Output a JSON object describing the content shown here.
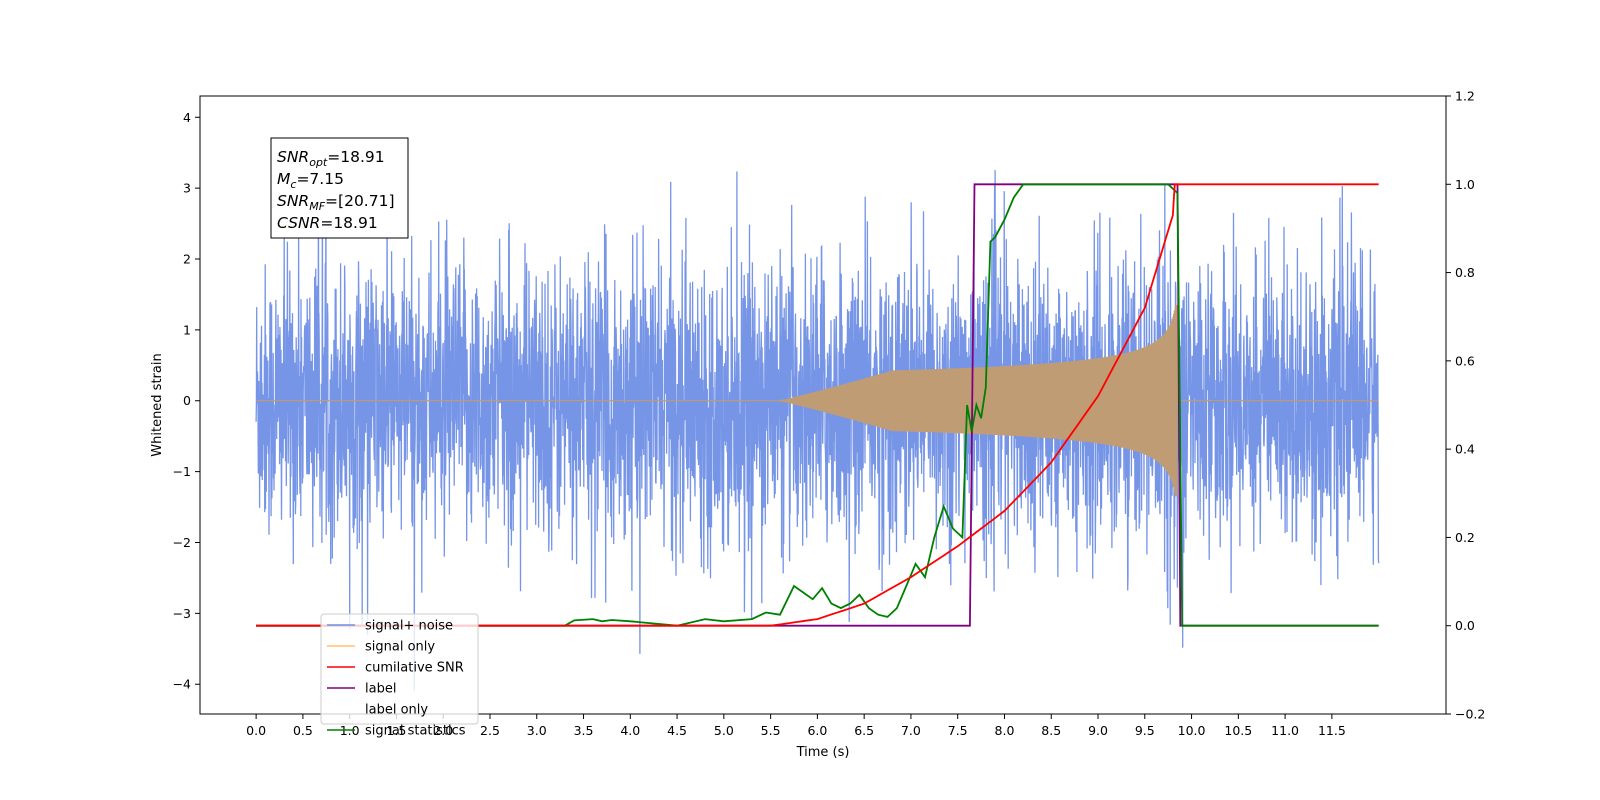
{
  "chart_data": {
    "type": "line",
    "title": "",
    "xlabel": "Time (s)",
    "ylabel": "Whitened strain",
    "xlim": [
      -0.6,
      12.72
    ],
    "ylim": [
      -4.42,
      4.3
    ],
    "y2lim": [
      -0.2,
      1.2
    ],
    "x_ticks": [
      "0.0",
      "0.5",
      "1.0",
      "1.5",
      "2.0",
      "2.5",
      "3.0",
      "3.5",
      "4.0",
      "4.5",
      "5.0",
      "5.5",
      "6.0",
      "6.5",
      "7.0",
      "7.5",
      "8.0",
      "8.5",
      "9.0",
      "9.5",
      "10.0",
      "10.5",
      "11.0",
      "11.5"
    ],
    "y_ticks": [
      "−4",
      "−3",
      "−2",
      "−1",
      "0",
      "1",
      "2",
      "3",
      "4"
    ],
    "y2_ticks": [
      "−0.2",
      "0.0",
      "0.2",
      "0.4",
      "0.6",
      "0.8",
      "1.0",
      "1.2"
    ],
    "grid": false,
    "legend_position": "lower-left",
    "annotation": {
      "lines": [
        {
          "main": "SNR",
          "sub": "opt",
          "rest": "=18.91"
        },
        {
          "main": "M",
          "sub": "c",
          "rest": "=7.15"
        },
        {
          "main": "SNR",
          "sub": "MF",
          "rest": "=[20.71]"
        },
        {
          "main": "CSNR",
          "sub": "",
          "rest": "=18.91"
        }
      ]
    },
    "series": [
      {
        "name": "signal+ noise",
        "color": "#6f8fe6",
        "axis": "left",
        "kind": "noise",
        "x_range": [
          0.0,
          12.0
        ],
        "noise_std": 1.0,
        "signal_range": [
          5.5,
          9.85
        ]
      },
      {
        "name": "signal only",
        "color": "#ffc46b",
        "axis": "left",
        "kind": "chirp",
        "x_range": [
          0.0,
          12.0
        ],
        "start": 5.6,
        "end": 9.85,
        "peak_amplitude": 1.3
      },
      {
        "name": "cumilative SNR",
        "color": "#ff0000",
        "axis": "right",
        "x": [
          0.0,
          5.5,
          6.0,
          6.5,
          7.0,
          7.5,
          8.0,
          8.5,
          9.0,
          9.5,
          9.8,
          9.82,
          12.0
        ],
        "values": [
          0.0,
          0.0,
          0.015,
          0.05,
          0.11,
          0.18,
          0.26,
          0.37,
          0.52,
          0.72,
          0.93,
          1.0,
          1.0
        ]
      },
      {
        "name": "label",
        "color": "#800080",
        "axis": "right",
        "x": [
          0.0,
          7.63,
          7.68,
          9.85,
          9.88,
          12.0
        ],
        "values": [
          0.0,
          0.0,
          1.0,
          1.0,
          0.0,
          0.0
        ]
      },
      {
        "name": "label only",
        "color": "#cccccc",
        "axis": "right",
        "x": [],
        "values": []
      },
      {
        "name": "signal statistics",
        "color": "#008000",
        "axis": "right",
        "x": [
          0.0,
          3.3,
          3.4,
          3.6,
          3.7,
          3.8,
          4.0,
          4.5,
          4.8,
          5.0,
          5.3,
          5.45,
          5.6,
          5.75,
          5.85,
          5.95,
          6.05,
          6.15,
          6.25,
          6.35,
          6.45,
          6.55,
          6.65,
          6.75,
          6.85,
          6.95,
          7.05,
          7.15,
          7.25,
          7.35,
          7.45,
          7.55,
          7.6,
          7.65,
          7.7,
          7.75,
          7.8,
          7.85,
          7.9,
          8.0,
          8.1,
          8.2,
          8.3,
          8.5,
          9.0,
          9.5,
          9.75,
          9.85,
          9.9,
          12.0
        ],
        "values": [
          0.0,
          0.0,
          0.012,
          0.015,
          0.01,
          0.013,
          0.01,
          0.0,
          0.015,
          0.01,
          0.015,
          0.03,
          0.025,
          0.09,
          0.075,
          0.06,
          0.085,
          0.05,
          0.04,
          0.05,
          0.07,
          0.04,
          0.025,
          0.02,
          0.04,
          0.09,
          0.14,
          0.11,
          0.2,
          0.27,
          0.22,
          0.2,
          0.5,
          0.44,
          0.5,
          0.47,
          0.54,
          0.87,
          0.88,
          0.92,
          0.97,
          1.0,
          1.0,
          1.0,
          1.0,
          1.0,
          1.0,
          0.98,
          0.0,
          0.0
        ]
      }
    ]
  }
}
